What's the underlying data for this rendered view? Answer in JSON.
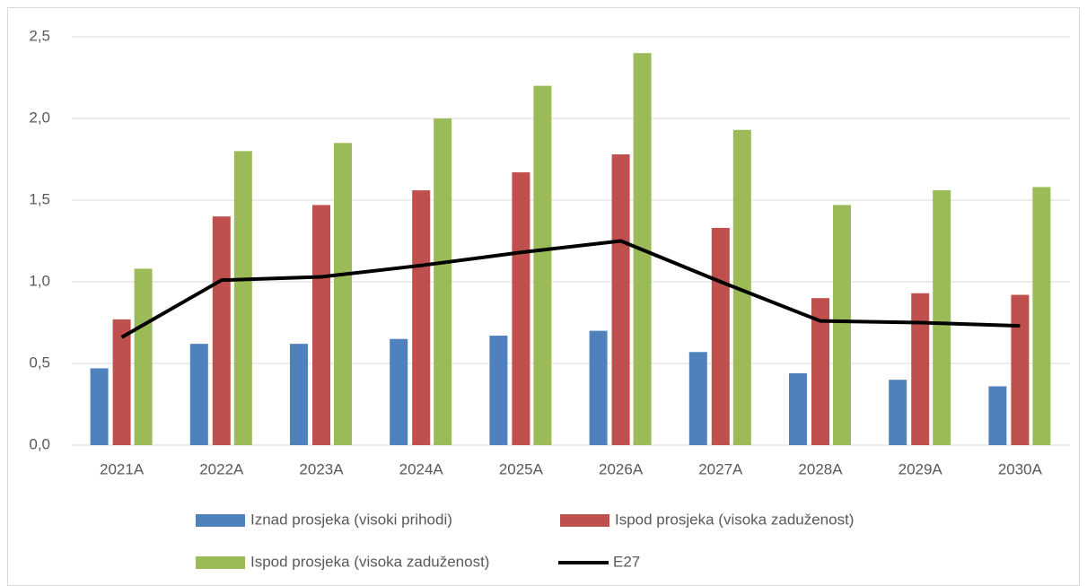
{
  "chart_data": {
    "type": "bar",
    "categories": [
      "2021A",
      "2022A",
      "2023A",
      "2024A",
      "2025A",
      "2026A",
      "2027A",
      "2028A",
      "2029A",
      "2030A"
    ],
    "series": [
      {
        "name": "Iznad prosjeka (visoki prihodi)",
        "color": "#4f81bd",
        "values": [
          0.47,
          0.62,
          0.62,
          0.65,
          0.67,
          0.7,
          0.57,
          0.44,
          0.4,
          0.36
        ]
      },
      {
        "name": "Ispod prosjeka (visoka zaduženost)",
        "color": "#c0504d",
        "values": [
          0.77,
          1.4,
          1.47,
          1.56,
          1.67,
          1.78,
          1.33,
          0.9,
          0.93,
          0.92
        ]
      },
      {
        "name": "Ispod prosjeka (visoka zaduženost)",
        "color": "#9bbb59",
        "values": [
          1.08,
          1.8,
          1.85,
          2.0,
          2.2,
          2.4,
          1.93,
          1.47,
          1.56,
          1.58
        ]
      },
      {
        "name": "E27",
        "type": "line",
        "color": "#000000",
        "values": [
          0.66,
          1.01,
          1.03,
          1.1,
          1.18,
          1.25,
          1.0,
          0.76,
          0.75,
          0.73
        ]
      }
    ],
    "ylim": [
      0,
      2.5
    ],
    "yticks": [
      {
        "value": 0,
        "label": "0,0"
      },
      {
        "value": 0.5,
        "label": "0,5"
      },
      {
        "value": 1,
        "label": "1,0"
      },
      {
        "value": 1.5,
        "label": "1,5"
      },
      {
        "value": 2,
        "label": "2,0"
      },
      {
        "value": 2.5,
        "label": "2,5"
      }
    ],
    "grid": true
  }
}
